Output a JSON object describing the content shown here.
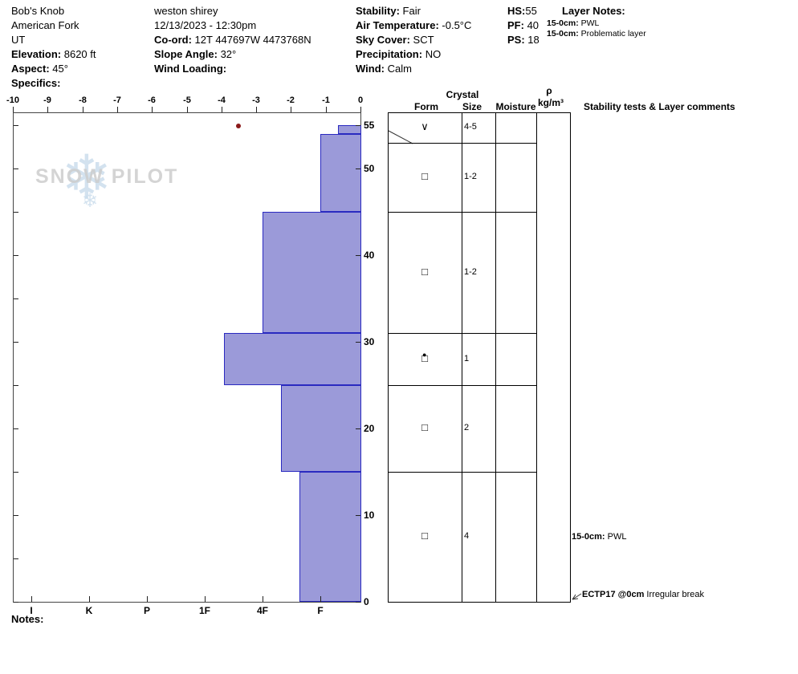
{
  "header": {
    "site": {
      "name": "Bob's Knob",
      "region": "American Fork",
      "state": "UT",
      "elevation_label": "Elevation:",
      "elevation_value": " 8620 ft",
      "aspect_label": "Aspect:",
      "aspect_value": " 45°",
      "specifics_label": "Specifics:"
    },
    "observer": {
      "name": "weston shirey",
      "datetime": "12/13/2023 - 12:30pm",
      "coord_label": "Co-ord:",
      "coord_value": " 12T 447697W 4473768N",
      "slope_angle_label": "Slope Angle:",
      "slope_angle_value": " 32°",
      "wind_loading_label": "Wind Loading:"
    },
    "conditions": {
      "stability_label": "Stability:",
      "stability_value": " Fair",
      "air_temp_label": "Air Temperature:",
      "air_temp_value": " -0.5°C",
      "sky_label": "Sky Cover:",
      "sky_value": " SCT",
      "precip_label": "Precipitation:",
      "precip_value": " NO",
      "wind_label": "Wind:",
      "wind_value": " Calm"
    },
    "totals": {
      "hs_label": "HS:",
      "hs_value": "55",
      "pf_label": "PF:",
      "pf_value": " 40",
      "ps_label": "PS:",
      "ps_value": " 18"
    },
    "layer_notes": {
      "title": "Layer Notes:",
      "items": [
        {
          "range": "15-0cm:",
          "text": " PWL"
        },
        {
          "range": "15-0cm:",
          "text": " Problematic layer"
        }
      ]
    }
  },
  "watermark": {
    "text": "SNOW PILOT",
    "snowflake": "❄"
  },
  "chart_data": {
    "type": "snow-profile",
    "title": "Snowpit hardness / temperature profile",
    "snow_height_cm": 55,
    "temp_axis": {
      "label_values": [
        -10,
        -9,
        -8,
        -7,
        -6,
        -5,
        -4,
        -3,
        -2,
        -1,
        0
      ],
      "range": [
        -10,
        0
      ],
      "units": "°C",
      "position": "top"
    },
    "depth_axis": {
      "tick_labels": [
        55,
        50,
        40,
        30,
        20,
        10,
        0
      ],
      "range": [
        0,
        55
      ],
      "units": "cm",
      "position": "right"
    },
    "hardness_axis": {
      "tick_labels": [
        "I",
        "K",
        "P",
        "1F",
        "4F",
        "F"
      ],
      "position": "bottom"
    },
    "layers": [
      {
        "top_cm": 55,
        "bottom_cm": 54,
        "hardness": "F-",
        "hardness_num": 0.7
      },
      {
        "top_cm": 54,
        "bottom_cm": 45,
        "hardness": "F",
        "hardness_num": 1.0
      },
      {
        "top_cm": 45,
        "bottom_cm": 31,
        "hardness": "4F",
        "hardness_num": 2.0
      },
      {
        "top_cm": 31,
        "bottom_cm": 25,
        "hardness": "1F-",
        "hardness_num": 2.67
      },
      {
        "top_cm": 25,
        "bottom_cm": 15,
        "hardness": "4F-",
        "hardness_num": 1.68
      },
      {
        "top_cm": 15,
        "bottom_cm": 0,
        "hardness": "F+",
        "hardness_num": 1.36
      }
    ],
    "temperature_points": [
      {
        "depth_cm": 55,
        "temp_c": -3.5
      }
    ],
    "bar_fill_color": "#9b9ad9",
    "bar_border_color": "#2a2ac0",
    "temp_point_color": "#8b1a1a",
    "crystal_table": {
      "header_group": "Crystal",
      "columns": [
        "Form",
        "Size",
        "Moisture"
      ],
      "density_header_rho": "ρ",
      "density_header_units": "kg/m³",
      "comments_header": "Stability tests & Layer comments",
      "rows": [
        {
          "form": "∨",
          "overlay": "",
          "size": "4-5",
          "moisture": "",
          "density": ""
        },
        {
          "form": "□",
          "overlay": "",
          "size": "1-2",
          "moisture": "",
          "density": ""
        },
        {
          "form": "□",
          "overlay": "",
          "size": "1-2",
          "moisture": "",
          "density": ""
        },
        {
          "form": "□",
          "overlay": "●",
          "size": "1",
          "moisture": "",
          "density": ""
        },
        {
          "form": "□",
          "overlay": "",
          "size": "2",
          "moisture": "",
          "density": ""
        },
        {
          "form": "□",
          "overlay": "",
          "size": "4",
          "moisture": "",
          "density": ""
        }
      ]
    },
    "annotations": [
      {
        "bold": "15-0cm:",
        "text": " PWL",
        "depth_cm": 7.4,
        "arrow": false
      },
      {
        "bold": "ECTP17 @0cm",
        "text": "  Irregular break",
        "depth_cm": 0.7,
        "arrow": true
      }
    ]
  },
  "footer": {
    "notes_label": "Notes:"
  }
}
